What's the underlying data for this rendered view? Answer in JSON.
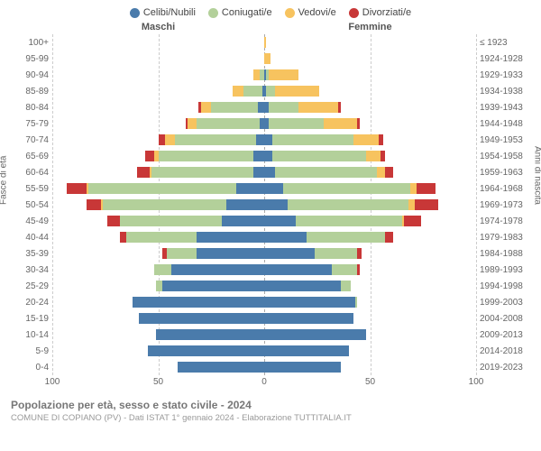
{
  "legend": [
    {
      "label": "Celibi/Nubili",
      "color": "#4a7bab"
    },
    {
      "label": "Coniugati/e",
      "color": "#b3d09a"
    },
    {
      "label": "Vedovi/e",
      "color": "#f7c35f"
    },
    {
      "label": "Divorziati/e",
      "color": "#c83737"
    }
  ],
  "headers": {
    "male": "Maschi",
    "female": "Femmine"
  },
  "y_left_title": "Fasce di età",
  "y_right_title": "Anni di nascita",
  "x_max": 100,
  "x_ticks": [
    100,
    50,
    0,
    50,
    100
  ],
  "age_bands": [
    "100+",
    "95-99",
    "90-94",
    "85-89",
    "80-84",
    "75-79",
    "70-74",
    "65-69",
    "60-64",
    "55-59",
    "50-54",
    "45-49",
    "40-44",
    "35-39",
    "30-34",
    "25-29",
    "20-24",
    "15-19",
    "10-14",
    "5-9",
    "0-4"
  ],
  "birth_years": [
    "≤ 1923",
    "1924-1928",
    "1929-1933",
    "1934-1938",
    "1939-1943",
    "1944-1948",
    "1949-1953",
    "1954-1958",
    "1959-1963",
    "1964-1968",
    "1969-1973",
    "1974-1978",
    "1979-1983",
    "1984-1988",
    "1989-1993",
    "1994-1998",
    "1999-2003",
    "2004-2008",
    "2009-2013",
    "2014-2018",
    "2019-2023"
  ],
  "male": [
    {
      "single": 0,
      "married": 0,
      "widowed": 0,
      "divorced": 0
    },
    {
      "single": 0,
      "married": 0,
      "widowed": 0,
      "divorced": 0
    },
    {
      "single": 0,
      "married": 2,
      "widowed": 3,
      "divorced": 0
    },
    {
      "single": 1,
      "married": 9,
      "widowed": 5,
      "divorced": 0
    },
    {
      "single": 3,
      "married": 22,
      "widowed": 5,
      "divorced": 1
    },
    {
      "single": 2,
      "married": 30,
      "widowed": 4,
      "divorced": 1
    },
    {
      "single": 4,
      "married": 38,
      "widowed": 5,
      "divorced": 3
    },
    {
      "single": 5,
      "married": 45,
      "widowed": 2,
      "divorced": 4
    },
    {
      "single": 5,
      "married": 48,
      "widowed": 1,
      "divorced": 6
    },
    {
      "single": 13,
      "married": 70,
      "widowed": 1,
      "divorced": 9
    },
    {
      "single": 18,
      "married": 58,
      "widowed": 1,
      "divorced": 7
    },
    {
      "single": 20,
      "married": 48,
      "widowed": 0,
      "divorced": 6
    },
    {
      "single": 32,
      "married": 33,
      "widowed": 0,
      "divorced": 3
    },
    {
      "single": 32,
      "married": 14,
      "widowed": 0,
      "divorced": 2
    },
    {
      "single": 44,
      "married": 8,
      "widowed": 0,
      "divorced": 0
    },
    {
      "single": 48,
      "married": 3,
      "widowed": 0,
      "divorced": 0
    },
    {
      "single": 62,
      "married": 0,
      "widowed": 0,
      "divorced": 0
    },
    {
      "single": 59,
      "married": 0,
      "widowed": 0,
      "divorced": 0
    },
    {
      "single": 51,
      "married": 0,
      "widowed": 0,
      "divorced": 0
    },
    {
      "single": 55,
      "married": 0,
      "widowed": 0,
      "divorced": 0
    },
    {
      "single": 41,
      "married": 0,
      "widowed": 0,
      "divorced": 0
    }
  ],
  "female": [
    {
      "single": 0,
      "married": 0,
      "widowed": 1,
      "divorced": 0
    },
    {
      "single": 0,
      "married": 0,
      "widowed": 3,
      "divorced": 0
    },
    {
      "single": 1,
      "married": 1,
      "widowed": 14,
      "divorced": 0
    },
    {
      "single": 1,
      "married": 4,
      "widowed": 21,
      "divorced": 0
    },
    {
      "single": 2,
      "married": 14,
      "widowed": 19,
      "divorced": 1
    },
    {
      "single": 2,
      "married": 26,
      "widowed": 16,
      "divorced": 1
    },
    {
      "single": 4,
      "married": 38,
      "widowed": 12,
      "divorced": 2
    },
    {
      "single": 4,
      "married": 44,
      "widowed": 7,
      "divorced": 2
    },
    {
      "single": 5,
      "married": 48,
      "widowed": 4,
      "divorced": 4
    },
    {
      "single": 9,
      "married": 60,
      "widowed": 3,
      "divorced": 9
    },
    {
      "single": 11,
      "married": 57,
      "widowed": 3,
      "divorced": 11
    },
    {
      "single": 15,
      "married": 50,
      "widowed": 1,
      "divorced": 8
    },
    {
      "single": 20,
      "married": 37,
      "widowed": 0,
      "divorced": 4
    },
    {
      "single": 24,
      "married": 20,
      "widowed": 0,
      "divorced": 2
    },
    {
      "single": 32,
      "married": 12,
      "widowed": 0,
      "divorced": 1
    },
    {
      "single": 36,
      "married": 5,
      "widowed": 0,
      "divorced": 0
    },
    {
      "single": 43,
      "married": 1,
      "widowed": 0,
      "divorced": 0
    },
    {
      "single": 42,
      "married": 0,
      "widowed": 0,
      "divorced": 0
    },
    {
      "single": 48,
      "married": 0,
      "widowed": 0,
      "divorced": 0
    },
    {
      "single": 40,
      "married": 0,
      "widowed": 0,
      "divorced": 0
    },
    {
      "single": 36,
      "married": 0,
      "widowed": 0,
      "divorced": 0
    }
  ],
  "colors": {
    "single": "#4a7bab",
    "married": "#b3d09a",
    "widowed": "#f7c35f",
    "divorced": "#c83737",
    "grid": "#cccccc",
    "bg": "#ffffff"
  },
  "footer": {
    "title": "Popolazione per età, sesso e stato civile - 2024",
    "subtitle": "COMUNE DI COPIANO (PV) - Dati ISTAT 1° gennaio 2024 - Elaborazione TUTTITALIA.IT"
  }
}
